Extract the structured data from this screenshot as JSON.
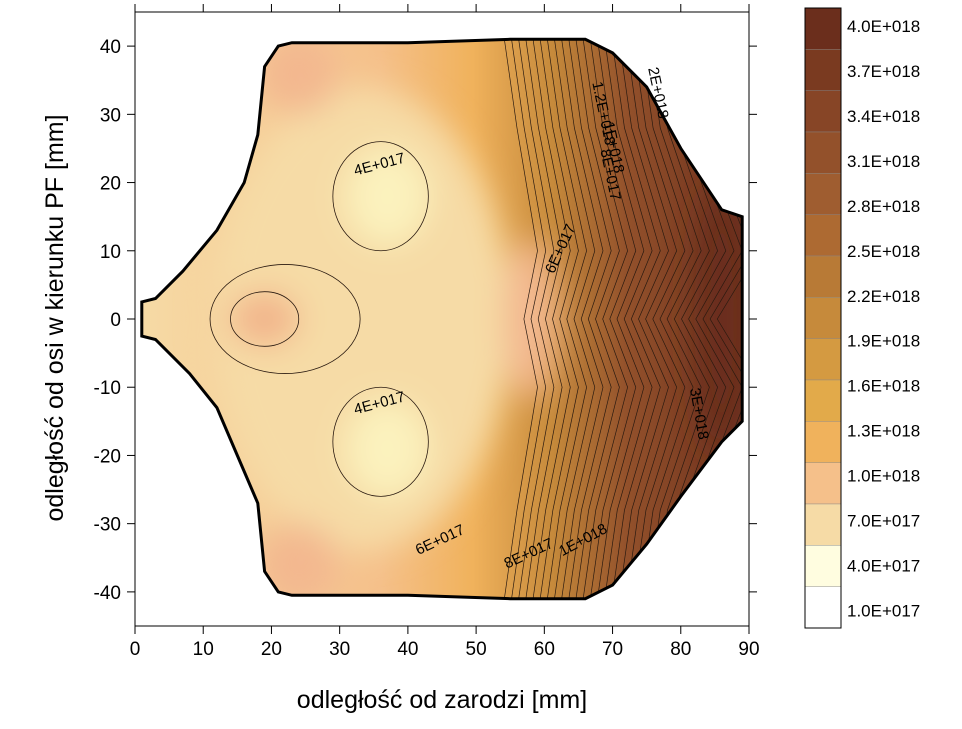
{
  "chart_data": {
    "type": "contour",
    "xlabel": "odległość od zarodzi [mm]",
    "ylabel": "odległość od osi w kierunku PF [mm]",
    "xlim": [
      0,
      90
    ],
    "ylim": [
      -45,
      45
    ],
    "x_ticks": [
      "0",
      "10",
      "20",
      "30",
      "40",
      "50",
      "60",
      "70",
      "80",
      "90"
    ],
    "y_ticks": [
      "-40",
      "-30",
      "-20",
      "-10",
      "0",
      "10",
      "20",
      "30",
      "40"
    ],
    "x_tick_values": [
      0,
      10,
      20,
      30,
      40,
      50,
      60,
      70,
      80,
      90
    ],
    "y_tick_values": [
      -40,
      -30,
      -20,
      -10,
      0,
      10,
      20,
      30,
      40
    ],
    "legend": {
      "position": "right",
      "labels": [
        "4.0E+018",
        "3.7E+018",
        "3.4E+018",
        "3.1E+018",
        "2.8E+018",
        "2.5E+018",
        "2.2E+018",
        "1.9E+018",
        "1.6E+018",
        "1.3E+018",
        "1.0E+018",
        "7.0E+017",
        "4.0E+017",
        "1.0E+017"
      ],
      "colors": [
        "#6b2e1c",
        "#7a3a20",
        "#874526",
        "#93512b",
        "#9f5d30",
        "#ad6a32",
        "#b87a36",
        "#c68a3b",
        "#d49a41",
        "#e2aa4a",
        "#f0b25c",
        "#f5c08a",
        "#f6dba6",
        "#fffde0",
        "#ffffff"
      ]
    },
    "contour_labels": [
      {
        "text": "4E+017",
        "x": 36,
        "y": 22,
        "angle": -15
      },
      {
        "text": "4E+017",
        "x": 36,
        "y": -13,
        "angle": -15
      },
      {
        "text": "6E+017",
        "x": 45,
        "y": -33,
        "angle": -25
      },
      {
        "text": "6E+017",
        "x": 63,
        "y": 10,
        "angle": -65
      },
      {
        "text": "8E+017",
        "x": 58,
        "y": -35,
        "angle": -25
      },
      {
        "text": "8E+017",
        "x": 69,
        "y": 21,
        "angle": 78
      },
      {
        "text": "1E+018",
        "x": 66,
        "y": -33,
        "angle": -28
      },
      {
        "text": "1E+018",
        "x": 69.5,
        "y": 25,
        "angle": 78
      },
      {
        "text": "1.2E+018",
        "x": 68,
        "y": 30,
        "angle": 78
      },
      {
        "text": "2E+018",
        "x": 76,
        "y": 33,
        "angle": 78
      },
      {
        "text": "3E+018",
        "x": 82,
        "y": -14,
        "angle": 80
      }
    ],
    "regions": [
      {
        "level": "1.0E+017",
        "cx": 37,
        "cy": 18,
        "rx": 6,
        "ry": 7,
        "note": "upper low region"
      },
      {
        "level": "1.0E+017",
        "cx": 37,
        "cy": -19,
        "rx": 6,
        "ry": 7,
        "note": "lower low region"
      },
      {
        "level": "7.0E+017",
        "cx": 19,
        "cy": 0,
        "rx": 5,
        "ry": 4,
        "note": "local maximum near axis"
      },
      {
        "level": "4.0E+018",
        "cx": 86,
        "cy": 0,
        "rx": 4,
        "ry": 20,
        "note": "peak region at x≈90"
      }
    ]
  }
}
